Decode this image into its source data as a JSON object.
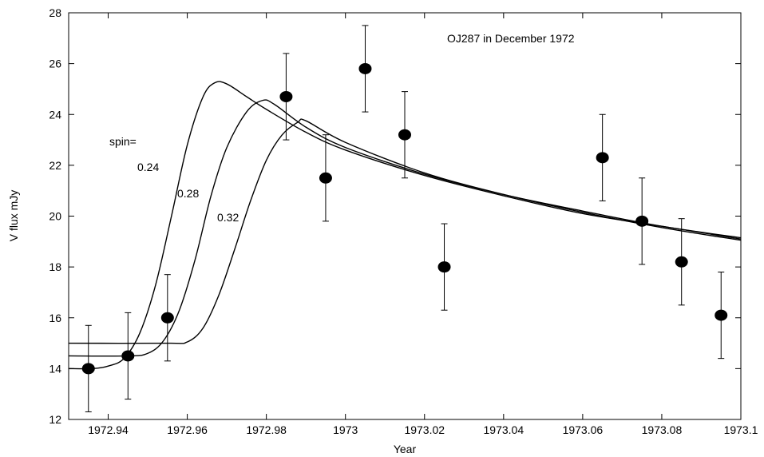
{
  "chart_data": {
    "type": "scatter",
    "title": "OJ287 in December 1972",
    "xlabel": "Year",
    "ylabel": "V flux mJy",
    "xlim": [
      1972.93,
      1973.1
    ],
    "ylim": [
      12,
      28
    ],
    "x_ticks": [
      1972.94,
      1972.96,
      1972.98,
      1973,
      1973.02,
      1973.04,
      1973.06,
      1973.08,
      1973.1
    ],
    "x_tick_labels": [
      "1972.94",
      "1972.96",
      "1972.98",
      "1973",
      "1973.02",
      "1973.04",
      "1973.06",
      "1973.08",
      "1973.1"
    ],
    "y_ticks": [
      12,
      14,
      16,
      18,
      20,
      22,
      24,
      26,
      28
    ],
    "y_tick_labels": [
      "12",
      "14",
      "16",
      "18",
      "20",
      "22",
      "24",
      "26",
      "28"
    ],
    "grid": false,
    "legend": "none",
    "annotations": {
      "spin_label": "spin=",
      "spin_values": [
        "0.24",
        "0.28",
        "0.32"
      ]
    },
    "points": [
      {
        "x": 1972.935,
        "y": 14.0,
        "err": 1.7
      },
      {
        "x": 1972.945,
        "y": 14.5,
        "err": 1.7
      },
      {
        "x": 1972.955,
        "y": 16.0,
        "err": 1.7
      },
      {
        "x": 1972.985,
        "y": 24.7,
        "err": 1.7
      },
      {
        "x": 1972.995,
        "y": 21.5,
        "err": 1.7
      },
      {
        "x": 1973.005,
        "y": 25.8,
        "err": 1.7
      },
      {
        "x": 1973.015,
        "y": 23.2,
        "err": 1.7
      },
      {
        "x": 1973.025,
        "y": 18.0,
        "err": 1.7
      },
      {
        "x": 1973.065,
        "y": 22.3,
        "err": 1.7
      },
      {
        "x": 1973.075,
        "y": 19.8,
        "err": 1.7
      },
      {
        "x": 1973.085,
        "y": 18.2,
        "err": 1.7
      },
      {
        "x": 1973.095,
        "y": 16.1,
        "err": 1.7
      }
    ],
    "curves": [
      {
        "spin": "0.24",
        "x": [
          1972.93,
          1972.936,
          1972.94,
          1972.944,
          1972.948,
          1972.952,
          1972.956,
          1972.96,
          1972.964,
          1972.967,
          1972.97,
          1972.975,
          1972.98,
          1972.99,
          1973.0,
          1973.02,
          1973.04,
          1973.06,
          1973.08,
          1973.1
        ],
        "y": [
          14.0,
          14.0,
          14.1,
          14.4,
          15.4,
          17.3,
          20.0,
          22.8,
          24.7,
          25.25,
          25.2,
          24.7,
          24.2,
          23.3,
          22.6,
          21.6,
          20.8,
          20.1,
          19.6,
          19.1
        ]
      },
      {
        "spin": "0.28",
        "x": [
          1972.93,
          1972.945,
          1972.95,
          1972.954,
          1972.958,
          1972.962,
          1972.966,
          1972.97,
          1972.975,
          1972.979,
          1972.982,
          1972.99,
          1973.0,
          1973.02,
          1973.04,
          1973.06,
          1973.08,
          1973.1
        ],
        "y": [
          14.5,
          14.5,
          14.6,
          15.1,
          16.3,
          18.3,
          20.8,
          22.7,
          24.1,
          24.55,
          24.4,
          23.5,
          22.7,
          21.65,
          20.85,
          20.2,
          19.6,
          19.15
        ]
      },
      {
        "spin": "0.32",
        "x": [
          1972.93,
          1972.955,
          1972.96,
          1972.964,
          1972.968,
          1972.972,
          1972.976,
          1972.98,
          1972.984,
          1972.988,
          1972.99,
          1973.0,
          1973.02,
          1973.04,
          1973.06,
          1973.08,
          1973.1
        ],
        "y": [
          15.0,
          15.0,
          15.05,
          15.6,
          16.9,
          18.7,
          20.6,
          22.2,
          23.2,
          23.7,
          23.75,
          22.9,
          21.7,
          20.85,
          20.15,
          19.55,
          19.05
        ]
      }
    ]
  }
}
